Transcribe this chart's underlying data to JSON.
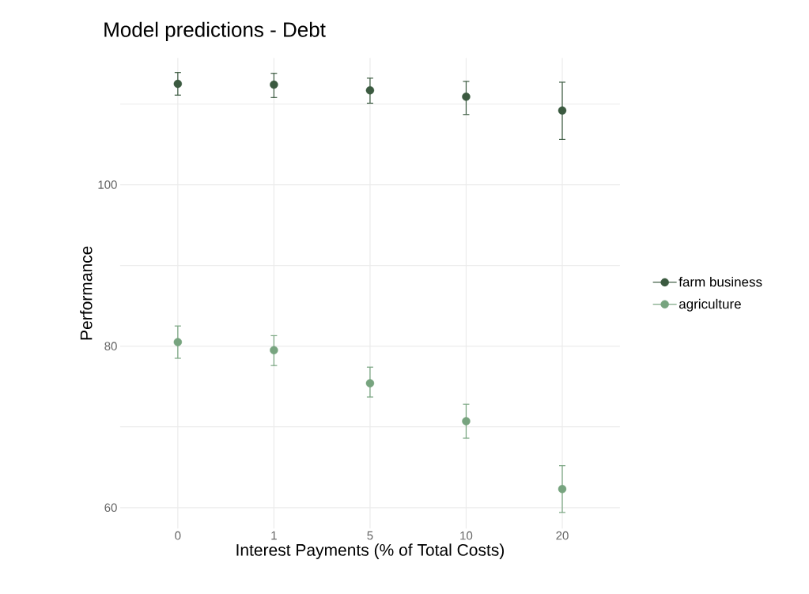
{
  "chart_data": {
    "type": "scatter",
    "title": "Model predictions - Debt",
    "xlabel": "Interest Payments (% of Total Costs)",
    "ylabel": "Performance",
    "categories": [
      "0",
      "1",
      "5",
      "10",
      "20"
    ],
    "series": [
      {
        "name": "farm business",
        "color": "#3b5a40",
        "values": [
          112.5,
          112.4,
          111.7,
          110.9,
          109.2
        ],
        "errors": [
          [
            111.1,
            113.9
          ],
          [
            110.8,
            113.8
          ],
          [
            110.1,
            113.2
          ],
          [
            108.7,
            112.8
          ],
          [
            105.6,
            112.7
          ]
        ]
      },
      {
        "name": "agriculture",
        "color": "#77a47f",
        "values": [
          80.5,
          79.5,
          75.4,
          70.7,
          62.3
        ],
        "errors": [
          [
            78.5,
            82.5
          ],
          [
            77.6,
            81.3
          ],
          [
            73.7,
            77.4
          ],
          [
            68.6,
            72.8
          ],
          [
            59.4,
            65.2
          ]
        ]
      }
    ],
    "ylim": [
      57.4,
      115.7
    ],
    "yticks": [
      60,
      {
        "value": 70,
        "label": null
      },
      80,
      {
        "value": 90,
        "label": null
      },
      100,
      {
        "value": 110,
        "label": null
      }
    ],
    "grid": true,
    "legend": "right",
    "marker": "circle"
  }
}
